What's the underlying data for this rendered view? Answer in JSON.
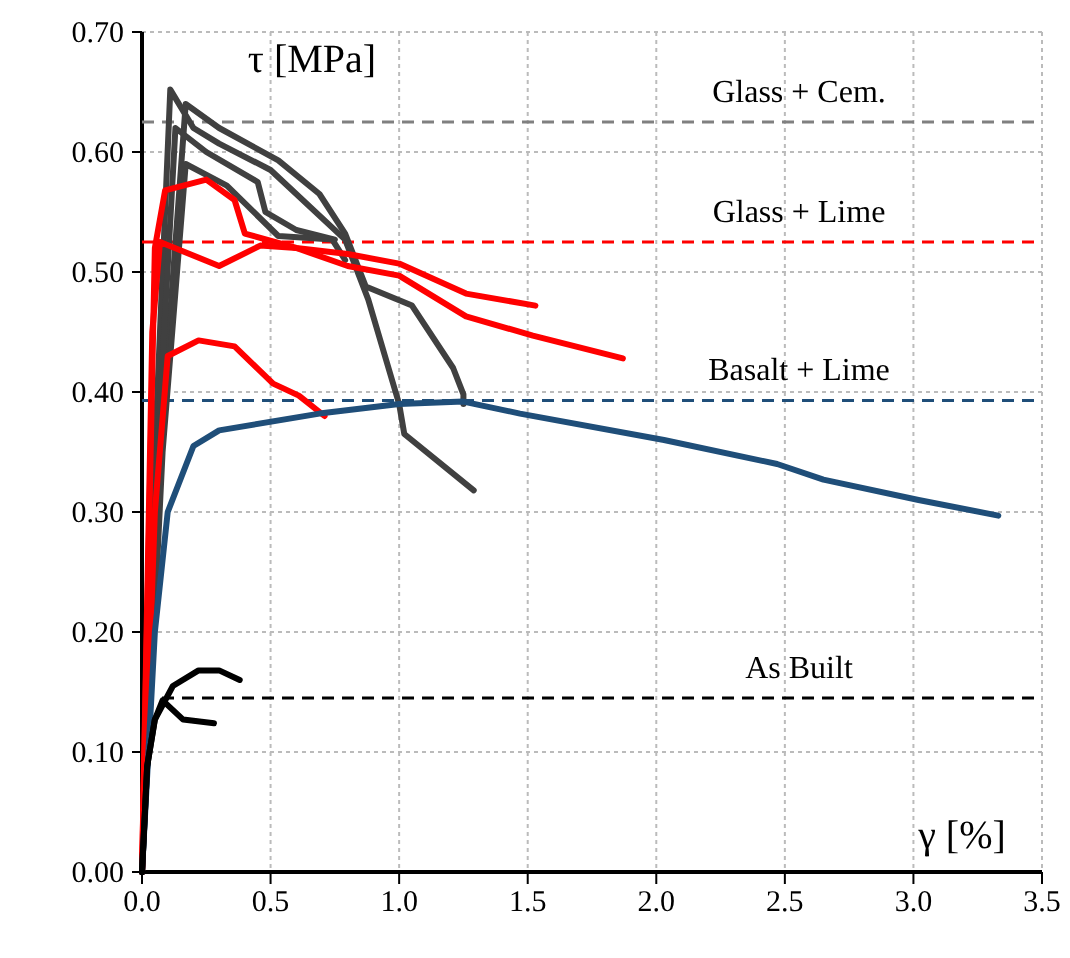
{
  "chart_data": {
    "type": "line",
    "xlabel": "γ [%]",
    "ylabel": "τ [MPa]",
    "xlim": [
      0,
      3.5
    ],
    "ylim": [
      0,
      0.7
    ],
    "xticks": [
      {
        "value": 0,
        "label": "0.0"
      },
      {
        "value": 0.5,
        "label": "0.5"
      },
      {
        "value": 1,
        "label": "1.0"
      },
      {
        "value": 1.5,
        "label": "1.5"
      },
      {
        "value": 2,
        "label": "2.0"
      },
      {
        "value": 2.5,
        "label": "2.5"
      },
      {
        "value": 3,
        "label": "3.0"
      },
      {
        "value": 3.5,
        "label": "3.5"
      }
    ],
    "yticks": [
      {
        "value": 0,
        "label": "0.00"
      },
      {
        "value": 0.1,
        "label": "0.10"
      },
      {
        "value": 0.2,
        "label": "0.20"
      },
      {
        "value": 0.3,
        "label": "0.30"
      },
      {
        "value": 0.4,
        "label": "0.40"
      },
      {
        "value": 0.5,
        "label": "0.50"
      },
      {
        "value": 0.6,
        "label": "0.60"
      },
      {
        "value": 0.7,
        "label": "0.70"
      }
    ],
    "grid": true,
    "marker": "none",
    "line_style": "solid",
    "series": [
      {
        "color": "#404040",
        "x": [
          0,
          0.05,
          0.11,
          0.2,
          0.3,
          0.5,
          0.79,
          0.88,
          1.0,
          1.02,
          1.29
        ],
        "values": [
          0,
          0.35,
          0.652,
          0.62,
          0.607,
          0.585,
          0.527,
          0.477,
          0.39,
          0.365,
          0.318
        ]
      },
      {
        "color": "#404040",
        "x": [
          0,
          0.07,
          0.17,
          0.3,
          0.53,
          0.69,
          0.79,
          0.87,
          1.05,
          1.21,
          1.25,
          1.25
        ],
        "values": [
          0,
          0.35,
          0.64,
          0.62,
          0.593,
          0.565,
          0.532,
          0.488,
          0.472,
          0.42,
          0.398,
          0.39
        ]
      },
      {
        "color": "#404040",
        "x": [
          0,
          0.06,
          0.13,
          0.25,
          0.45,
          0.48,
          0.6,
          0.75
        ],
        "values": [
          0,
          0.35,
          0.62,
          0.6,
          0.575,
          0.55,
          0.535,
          0.527
        ]
      },
      {
        "color": "#404040",
        "x": [
          0,
          0.08,
          0.17,
          0.33,
          0.53,
          0.74,
          0.79
        ],
        "values": [
          0,
          0.35,
          0.59,
          0.572,
          0.53,
          0.527,
          0.51
        ]
      },
      {
        "color": "#ff0000",
        "x": [
          0,
          0.05,
          0.09,
          0.25,
          0.36,
          0.4,
          0.6,
          0.8,
          1.0,
          1.26,
          1.53
        ],
        "values": [
          0,
          0.52,
          0.568,
          0.577,
          0.56,
          0.532,
          0.52,
          0.515,
          0.507,
          0.482,
          0.472
        ]
      },
      {
        "color": "#ff0000",
        "x": [
          0,
          0.04,
          0.07,
          0.3,
          0.46,
          0.6,
          0.8,
          1.0,
          1.26,
          1.52,
          1.87
        ],
        "values": [
          0,
          0.45,
          0.525,
          0.505,
          0.522,
          0.52,
          0.505,
          0.497,
          0.463,
          0.447,
          0.428
        ]
      },
      {
        "color": "#ff0000",
        "x": [
          0,
          0.05,
          0.1,
          0.22,
          0.36,
          0.51,
          0.61,
          0.71
        ],
        "values": [
          0,
          0.3,
          0.43,
          0.443,
          0.438,
          0.407,
          0.397,
          0.38
        ]
      },
      {
        "color": "#1f4e79",
        "x": [
          0,
          0.05,
          0.1,
          0.2,
          0.3,
          0.69,
          1.0,
          1.25,
          1.47,
          2.03,
          2.47,
          2.65,
          3.02,
          3.33
        ],
        "values": [
          0,
          0.2,
          0.3,
          0.355,
          0.368,
          0.382,
          0.39,
          0.392,
          0.382,
          0.36,
          0.34,
          0.327,
          0.31,
          0.297
        ]
      },
      {
        "color": "#000000",
        "x": [
          0,
          0.02,
          0.05,
          0.12,
          0.22,
          0.3,
          0.38
        ],
        "values": [
          0,
          0.088,
          0.127,
          0.155,
          0.168,
          0.168,
          0.16
        ]
      },
      {
        "color": "#000000",
        "x": [
          0,
          0.02,
          0.05,
          0.08,
          0.16,
          0.28
        ],
        "values": [
          0,
          0.088,
          0.127,
          0.143,
          0.127,
          0.124
        ]
      }
    ],
    "ref_lines": [
      {
        "axis": "y",
        "value": 0.625,
        "label": "Glass + Cem.",
        "color": "#808080",
        "line_style": "dashed"
      },
      {
        "axis": "y",
        "value": 0.525,
        "label": "Glass + Lime",
        "color": "#ff0000",
        "line_style": "dashed"
      },
      {
        "axis": "y",
        "value": 0.393,
        "label": "Basalt + Lime",
        "color": "#1f4e79",
        "line_style": "dashed"
      },
      {
        "axis": "y",
        "value": 0.145,
        "label": "As Built",
        "color": "#000000",
        "line_style": "dashed"
      }
    ]
  }
}
